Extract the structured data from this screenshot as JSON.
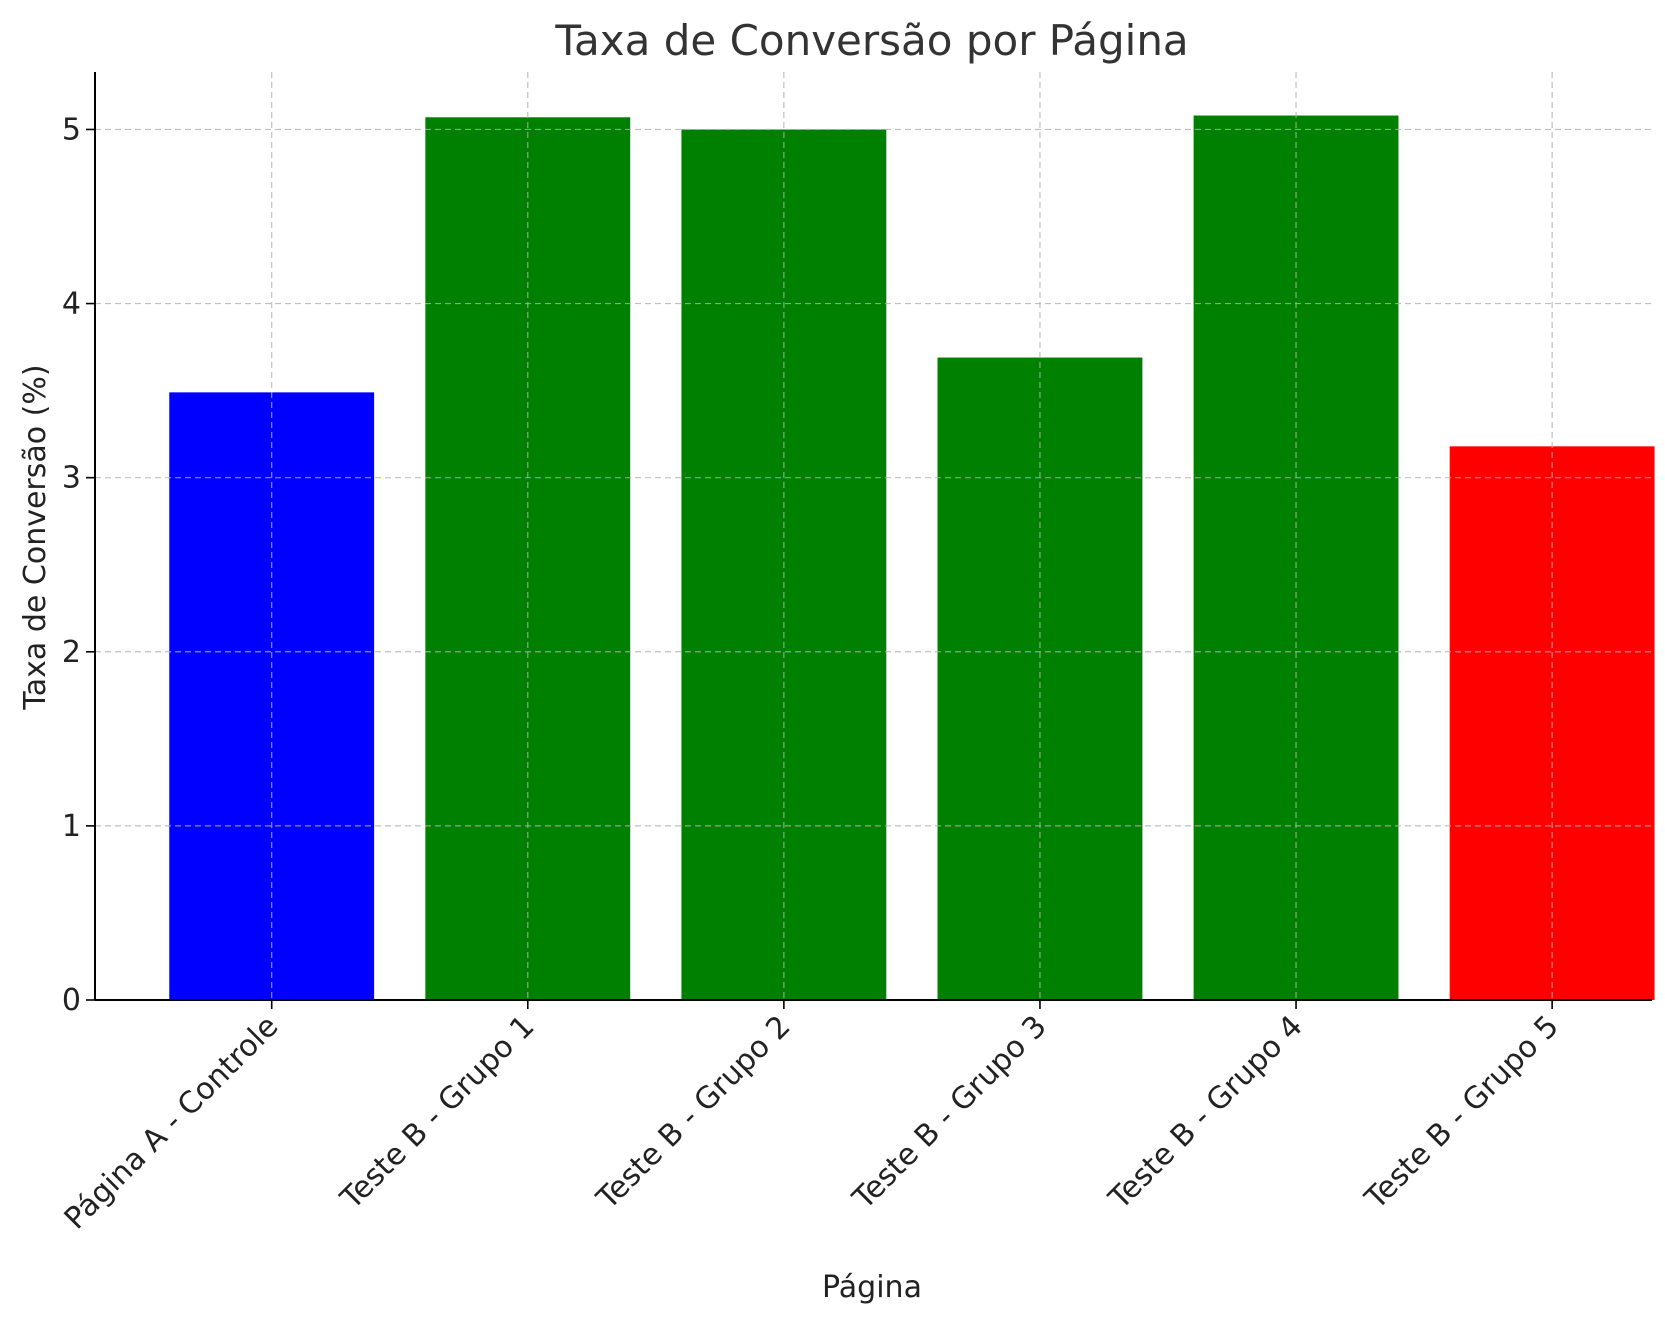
{
  "chart_data": {
    "type": "bar",
    "title": "Taxa de Conversão por Página",
    "xlabel": "Página",
    "ylabel": "Taxa de Conversão (%)",
    "categories": [
      "Página A - Controle",
      "Teste B - Grupo 1",
      "Teste B - Grupo 2",
      "Teste B - Grupo 3",
      "Teste B - Grupo 4",
      "Teste B - Grupo 5"
    ],
    "values": [
      3.49,
      5.07,
      5.0,
      3.69,
      5.08,
      3.18
    ],
    "colors": [
      "#0000ff",
      "#008000",
      "#008000",
      "#008000",
      "#008000",
      "#ff0000"
    ],
    "ylim": [
      0,
      5.33
    ],
    "yticks": [
      0,
      1,
      2,
      3,
      4,
      5
    ],
    "grid": true
  }
}
